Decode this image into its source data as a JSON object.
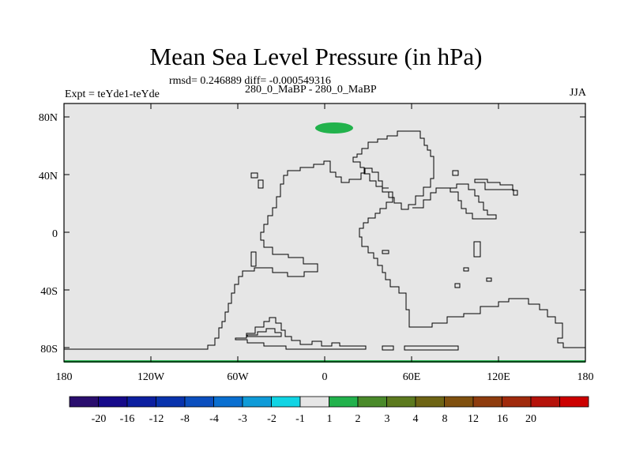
{
  "title": "Mean Sea Level Pressure (in hPa)",
  "stats_line": "rmsd= 0.246889 diff= -0.000549316",
  "experiment_label": "Expt = teYde1-teYde",
  "case_label": "280_0_MaBP - 280_0_MaBP",
  "season_label": "JJA",
  "map": {
    "background_color": "#e6e6e6",
    "x_ticks": [
      "180",
      "120W",
      "60W",
      "0",
      "60E",
      "120E",
      "180"
    ],
    "y_ticks": [
      "80N",
      "40N",
      "0",
      "40S",
      "80S"
    ],
    "positive_anomaly_color": "#22b24c"
  },
  "colorbar": {
    "colors": [
      "#2a0e6e",
      "#160a8a",
      "#0c1fa0",
      "#0833ad",
      "#0b4fbf",
      "#0a6fd0",
      "#0f9bd8",
      "#11d4e4",
      "#e6e6e6",
      "#22b24c",
      "#4a8a2a",
      "#5c7a1e",
      "#6e6414",
      "#80500f",
      "#8e3c0e",
      "#a02a0c",
      "#b5120a",
      "#cc0000"
    ],
    "labels": [
      "-20",
      "-16",
      "-12",
      "-8",
      "-4",
      "-3",
      "-2",
      "-1",
      "1",
      "2",
      "3",
      "4",
      "8",
      "12",
      "16",
      "20"
    ]
  }
}
